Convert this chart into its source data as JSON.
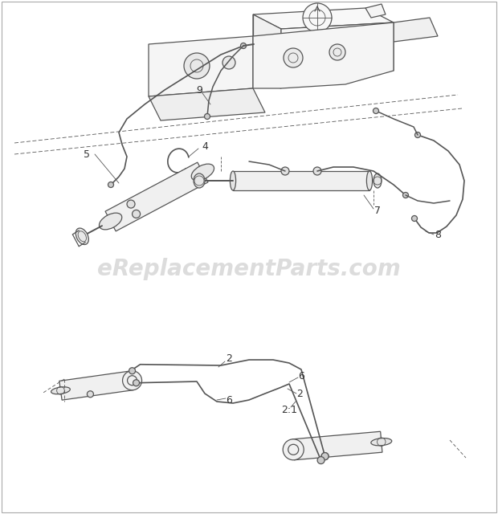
{
  "background_color": "#ffffff",
  "border_color": "#aaaaaa",
  "watermark_text": "eReplacementParts.com",
  "watermark_color": "#bbbbbb",
  "watermark_alpha": 0.5,
  "watermark_fontsize": 20,
  "line_color": "#888888",
  "dark_line_color": "#555555",
  "label_fontsize": 8.5,
  "label_color": "#333333",
  "figsize": [
    6.2,
    6.4
  ],
  "dpi": 100
}
